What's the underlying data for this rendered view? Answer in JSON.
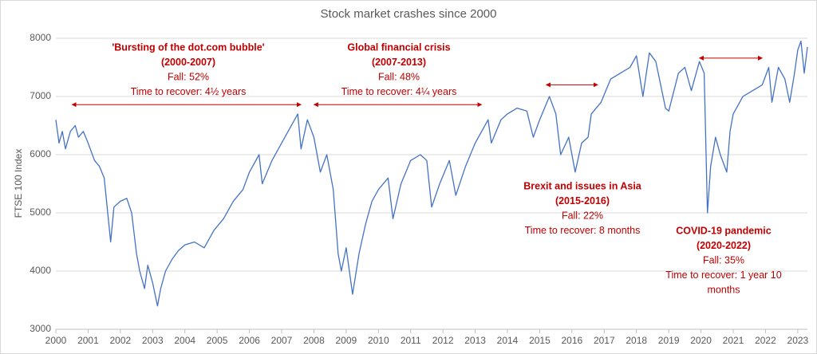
{
  "chart_data": {
    "type": "line",
    "title": "Stock market crashes since 2000",
    "y_label": "FTSE 100 Index",
    "x": [
      2000.0,
      2000.1,
      2000.2,
      2000.3,
      2000.45,
      2000.6,
      2000.7,
      2000.85,
      2001.0,
      2001.2,
      2001.35,
      2001.5,
      2001.7,
      2001.8,
      2002.0,
      2002.2,
      2002.35,
      2002.5,
      2002.6,
      2002.75,
      2002.85,
      2003.0,
      2003.15,
      2003.25,
      2003.4,
      2003.6,
      2003.8,
      2004.0,
      2004.3,
      2004.6,
      2004.9,
      2005.2,
      2005.5,
      2005.8,
      2006.0,
      2006.3,
      2006.4,
      2006.7,
      2007.0,
      2007.4,
      2007.5,
      2007.6,
      2007.8,
      2008.0,
      2008.2,
      2008.4,
      2008.6,
      2008.75,
      2008.85,
      2009.0,
      2009.2,
      2009.4,
      2009.6,
      2009.8,
      2010.0,
      2010.3,
      2010.45,
      2010.7,
      2011.0,
      2011.3,
      2011.5,
      2011.65,
      2011.9,
      2012.2,
      2012.4,
      2012.7,
      2013.0,
      2013.4,
      2013.5,
      2013.8,
      2014.0,
      2014.3,
      2014.6,
      2014.8,
      2015.0,
      2015.3,
      2015.5,
      2015.65,
      2015.9,
      2016.1,
      2016.3,
      2016.5,
      2016.6,
      2016.9,
      2017.2,
      2017.5,
      2017.8,
      2018.0,
      2018.2,
      2018.4,
      2018.6,
      2018.9,
      2019.0,
      2019.3,
      2019.5,
      2019.7,
      2019.95,
      2020.1,
      2020.2,
      2020.3,
      2020.45,
      2020.6,
      2020.8,
      2020.9,
      2021.0,
      2021.3,
      2021.6,
      2021.9,
      2022.1,
      2022.2,
      2022.4,
      2022.6,
      2022.75,
      2022.9,
      2023.0,
      2023.1,
      2023.2,
      2023.3
    ],
    "series": [
      {
        "color": "#4472c4",
        "values": [
          6600,
          6200,
          6400,
          6100,
          6400,
          6500,
          6300,
          6400,
          6200,
          5900,
          5800,
          5600,
          4500,
          5100,
          5200,
          5250,
          5000,
          4300,
          4000,
          3700,
          4100,
          3800,
          3400,
          3700,
          4000,
          4200,
          4350,
          4450,
          4500,
          4400,
          4700,
          4900,
          5200,
          5400,
          5700,
          6000,
          5500,
          5900,
          6200,
          6600,
          6700,
          6100,
          6600,
          6300,
          5700,
          6000,
          5400,
          4300,
          4000,
          4400,
          3600,
          4300,
          4800,
          5200,
          5400,
          5600,
          4900,
          5500,
          5900,
          6000,
          5900,
          5100,
          5500,
          5900,
          5300,
          5800,
          6200,
          6600,
          6200,
          6600,
          6700,
          6800,
          6750,
          6300,
          6600,
          7000,
          6700,
          6000,
          6300,
          5700,
          6200,
          6300,
          6700,
          6900,
          7300,
          7400,
          7500,
          7700,
          7000,
          7750,
          7600,
          6800,
          6750,
          7400,
          7500,
          7100,
          7600,
          7400,
          5000,
          5800,
          6300,
          6000,
          5700,
          6400,
          6700,
          7000,
          7100,
          7200,
          7500,
          6900,
          7500,
          7300,
          6900,
          7400,
          7800,
          7950,
          7400,
          7850
        ]
      }
    ],
    "xlim": [
      2000,
      2023.3
    ],
    "xticks": [
      2000,
      2001,
      2002,
      2003,
      2004,
      2005,
      2006,
      2007,
      2008,
      2009,
      2010,
      2011,
      2012,
      2013,
      2014,
      2015,
      2016,
      2017,
      2018,
      2019,
      2020,
      2021,
      2022,
      2023
    ],
    "ylim": [
      3000,
      8000
    ],
    "yticks": [
      3000,
      4000,
      5000,
      6000,
      7000,
      8000
    ],
    "grid": true,
    "annotations": [
      {
        "lines": [
          "'Bursting of the dot.com bubble'",
          "(2000-2007)",
          "Fall: 52%",
          "Time to recover: 4½ years"
        ],
        "span": [
          2000.5,
          2007.6
        ],
        "level": 6860
      },
      {
        "lines": [
          "Global financial crisis",
          "(2007-2013)",
          "Fall: 48%",
          "Time to recover: 4¼ years"
        ],
        "span": [
          2008.0,
          2013.2
        ],
        "level": 6860
      },
      {
        "lines": [
          "Brexit and issues in Asia",
          "(2015-2016)",
          "Fall: 22%",
          "Time to recover: 8 months"
        ],
        "span": [
          2015.2,
          2016.8
        ],
        "level": 7200
      },
      {
        "lines": [
          "COVID-19 pandemic",
          "(2020-2022)",
          "Fall: 35%",
          "Time to recover: 1 year 10",
          "months"
        ],
        "span": [
          2019.95,
          2021.9
        ],
        "level": 7660
      }
    ]
  }
}
